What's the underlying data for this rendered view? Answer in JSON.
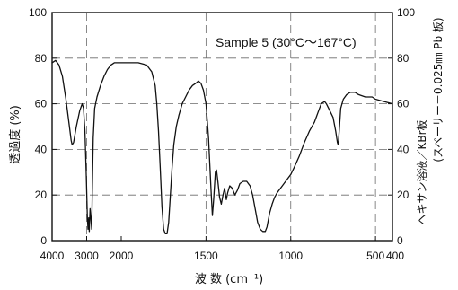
{
  "chart_data": {
    "type": "line",
    "annotation": "Sample 5 (30°C～167°C)",
    "xlabel": "波 数 (cm⁻¹)",
    "ylabel": "透過度 (%)",
    "ylabel_right": [
      "ヘキサン溶液／KBr板",
      "(スペーサー－0.025㎜ Pb 板)"
    ],
    "xlim": [
      4000,
      400
    ],
    "ylim": [
      0,
      100
    ],
    "x_ticks": [
      4000,
      3000,
      2000,
      1500,
      1000,
      500,
      400
    ],
    "y_ticks": [
      0,
      20,
      40,
      60,
      80,
      100
    ],
    "y_ticks_right": [
      0,
      20,
      40,
      60,
      80,
      100
    ],
    "grid": true,
    "grid_lines": {
      "x": [
        3000,
        1500,
        1000,
        500
      ],
      "y": [
        20,
        40,
        60,
        80
      ]
    },
    "series": [
      {
        "x": [
          4000,
          3900,
          3800,
          3700,
          3600,
          3500,
          3450,
          3420,
          3380,
          3300,
          3200,
          3130,
          3090,
          3050,
          3010,
          2980,
          2960,
          2940,
          2925,
          2900,
          2870,
          2855,
          2840,
          2810,
          2770,
          2700,
          2600,
          2500,
          2400,
          2300,
          2200,
          2100,
          2000,
          1950,
          1900,
          1850,
          1820,
          1800,
          1790,
          1780,
          1770,
          1760,
          1750,
          1740,
          1730,
          1720,
          1710,
          1700,
          1690,
          1675,
          1660,
          1640,
          1620,
          1600,
          1580,
          1560,
          1545,
          1530,
          1515,
          1500,
          1485,
          1470,
          1462,
          1455,
          1445,
          1438,
          1430,
          1420,
          1410,
          1400,
          1390,
          1380,
          1372,
          1360,
          1345,
          1330,
          1315,
          1300,
          1280,
          1260,
          1240,
          1225,
          1210,
          1195,
          1180,
          1165,
          1150,
          1140,
          1125,
          1110,
          1095,
          1080,
          1060,
          1040,
          1020,
          1000,
          980,
          950,
          920,
          890,
          860,
          840,
          820,
          800,
          790,
          770,
          750,
          735,
          725,
          720,
          714,
          705,
          690,
          670,
          650,
          620,
          600,
          560,
          520,
          500,
          450,
          400
        ],
        "y": [
          78,
          79,
          77,
          72,
          62,
          50,
          44,
          42,
          43,
          50,
          57,
          60,
          58,
          48,
          28,
          10,
          5,
          10,
          4,
          14,
          8,
          5,
          20,
          45,
          58,
          63,
          68,
          72,
          75,
          77,
          78,
          78,
          78,
          78,
          78,
          77,
          74,
          68,
          60,
          48,
          32,
          15,
          5,
          3,
          3,
          8,
          20,
          32,
          42,
          50,
          55,
          60,
          63,
          66,
          68,
          69,
          70,
          69,
          66,
          60,
          45,
          22,
          11,
          18,
          30,
          31,
          26,
          19,
          16,
          20,
          23,
          18,
          21,
          24,
          23,
          20,
          22,
          25,
          26,
          26,
          24,
          20,
          14,
          8,
          5,
          4,
          4,
          6,
          12,
          16,
          19,
          21,
          23,
          25,
          27,
          29,
          32,
          37,
          43,
          48,
          52,
          56,
          60,
          61,
          60,
          57,
          54,
          48,
          43,
          42,
          48,
          58,
          62,
          64,
          65,
          65,
          64,
          63,
          63,
          62,
          61,
          60
        ]
      }
    ]
  }
}
